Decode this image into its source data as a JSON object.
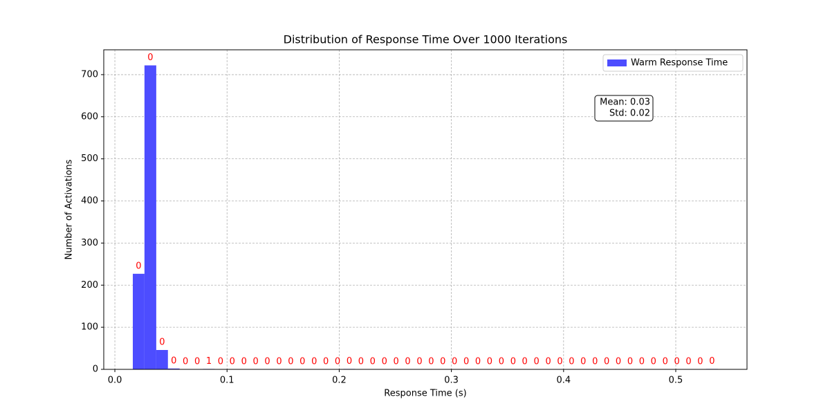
{
  "chart_data": {
    "type": "histogram",
    "title": "Distribution of Response Time Over 1000 Iterations",
    "x_label": "Response Time (s)",
    "y_label": "Number of Activations",
    "bins": [
      0.016,
      0.0264,
      0.0369,
      0.0473,
      0.0577,
      0.0682,
      0.0786,
      0.089,
      0.0994,
      0.1099,
      0.1203,
      0.1307,
      0.1412,
      0.1516,
      0.162,
      0.1725,
      0.1829,
      0.1933,
      0.2037,
      0.2142,
      0.2246,
      0.235,
      0.2455,
      0.2559,
      0.2663,
      0.2768,
      0.2872,
      0.2976,
      0.308,
      0.3185,
      0.3289,
      0.3393,
      0.3498,
      0.3602,
      0.3706,
      0.3811,
      0.3915,
      0.4019,
      0.4123,
      0.4228,
      0.4332,
      0.4436,
      0.4541,
      0.4645,
      0.4749,
      0.4854,
      0.4958,
      0.5062,
      0.5166,
      0.5271,
      0.5375
    ],
    "series": [
      {
        "name": "Warm Response Time",
        "color": "#4d4dff",
        "values": [
          227,
          722,
          46,
          2,
          0,
          0,
          1,
          0,
          0,
          0,
          0,
          0,
          0,
          0,
          0,
          0,
          0,
          0,
          1,
          0,
          0,
          0,
          0,
          0,
          0,
          0,
          0,
          0,
          0,
          0,
          0,
          0,
          0,
          0,
          0,
          0,
          0,
          0,
          0,
          0,
          0,
          0,
          0,
          0,
          0,
          0,
          0,
          0,
          0,
          1
        ]
      }
    ],
    "bar_labels": [
      "0",
      "0",
      "0",
      "0",
      "0",
      "0",
      "1",
      "0",
      "0",
      "0",
      "0",
      "0",
      "0",
      "0",
      "0",
      "0",
      "0",
      "0",
      "0",
      "0",
      "0",
      "0",
      "0",
      "0",
      "0",
      "0",
      "0",
      "0",
      "0",
      "0",
      "0",
      "0",
      "0",
      "0",
      "0",
      "0",
      "0",
      "0",
      "0",
      "0",
      "0",
      "0",
      "0",
      "0",
      "0",
      "0",
      "0",
      "0",
      "0",
      "0"
    ],
    "bar_label_color": "#ff0000",
    "stats": [
      "Mean: 0.03",
      "Std: 0.02"
    ],
    "xlim": [
      -0.0099,
      0.5635
    ],
    "ylim": [
      0,
      759
    ],
    "xticks": [
      {
        "value": 0,
        "label": "0.0"
      },
      0.1,
      0.2,
      0.3,
      0.4,
      0.5
    ],
    "yticks": [
      0,
      100,
      200,
      300,
      400,
      500,
      600,
      700
    ],
    "grid": true,
    "legend": "upper right"
  }
}
